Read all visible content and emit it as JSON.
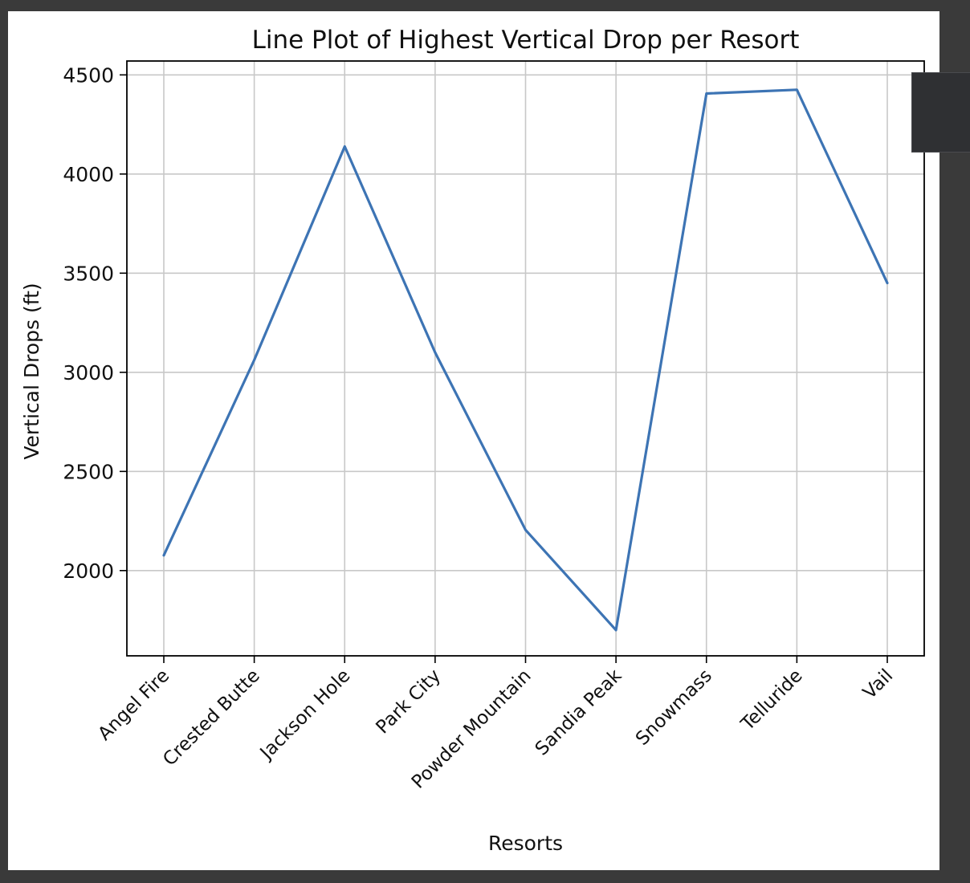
{
  "chart_data": {
    "type": "line",
    "title": "Line Plot of Highest Vertical Drop per Resort",
    "xlabel": "Resorts",
    "ylabel": "Vertical Drops (ft)",
    "categories": [
      "Angel Fire",
      "Crested Butte",
      "Jackson Hole",
      "Park City",
      "Powder Mountain",
      "Sandia Peak",
      "Snowmass",
      "Telluride",
      "Vail"
    ],
    "series": [
      {
        "values": [
          2077,
          3062,
          4139,
          3100,
          2205,
          1700,
          4406,
          4425,
          3450
        ],
        "color": "#3d74b4"
      }
    ],
    "ylim": [
      1570,
      4570
    ],
    "yticks": [
      2000,
      2500,
      3000,
      3500,
      4000,
      4500
    ],
    "grid": true,
    "x_tick_rotation": -45
  },
  "colors": {
    "background": "#3a3a3a",
    "figure": "#ffffff",
    "grid": "#c8c8c8",
    "axis": "#000000",
    "side_panel": "#2f3033"
  }
}
